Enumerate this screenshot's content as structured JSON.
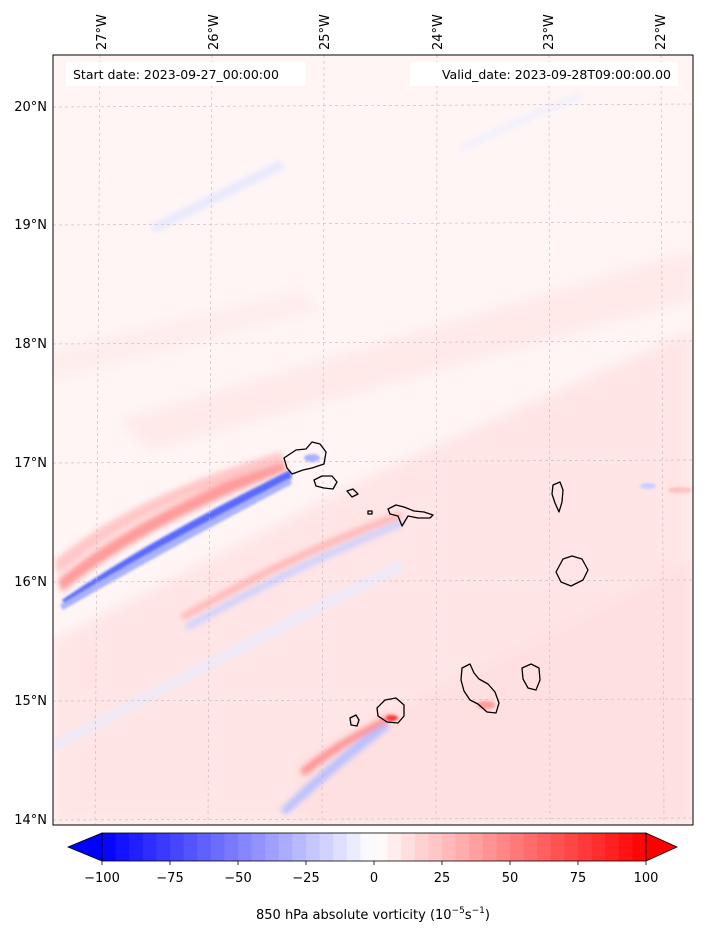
{
  "header": {
    "start_date": "Start date: 2023-09-27_00:00:00",
    "valid_date": "Valid_date: 2023-09-28T09:00:00.00"
  },
  "longitude_labels": [
    "27°W",
    "26°W",
    "25°W",
    "24°W",
    "23°W",
    "22°W"
  ],
  "latitude_labels": [
    "20°N",
    "19°N",
    "18°N",
    "17°N",
    "16°N",
    "15°N",
    "14°N"
  ],
  "colorbar": {
    "label": "850 hPa absolute vorticity (10",
    "label_exp": "−5",
    "label_mid": "s",
    "label_exp2": "−1",
    "label_end": ")",
    "ticks": [
      "−100",
      "−75",
      "−50",
      "−25",
      "0",
      "25",
      "50",
      "75",
      "100"
    ],
    "tick_values": [
      -100,
      -75,
      -50,
      -25,
      0,
      25,
      50,
      75,
      100
    ],
    "range": [
      -100,
      100
    ],
    "extend": "both",
    "colormap": "bwr"
  },
  "map_data": {
    "type": "filled-contour",
    "field": "850 hPa absolute vorticity",
    "lon_range": [
      -27.4,
      -21.8
    ],
    "lat_range": [
      13.95,
      20.4
    ],
    "colors": {
      "negative": "#0000ff",
      "zero": "#ffffff",
      "positive": "#ff0000",
      "coast": "#000000",
      "grid": "#bbbbbb"
    }
  }
}
